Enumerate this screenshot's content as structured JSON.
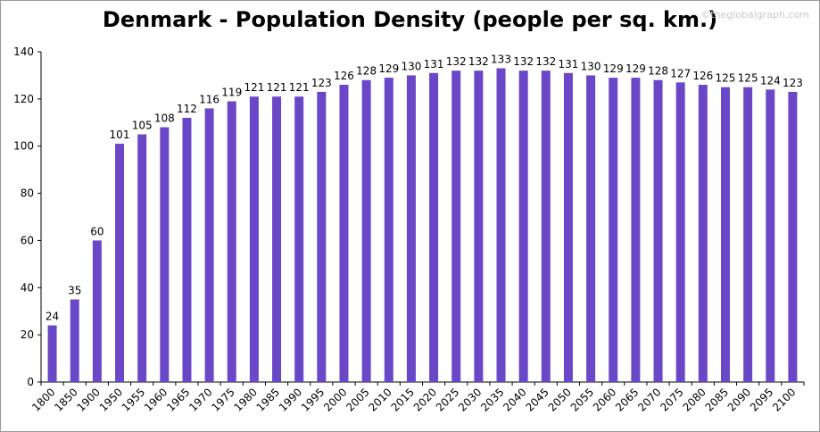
{
  "title": "Denmark - Population Density (people per sq. km.)",
  "watermark": "©theglobalgraph.com",
  "chart_data": {
    "type": "bar",
    "title": "Denmark - Population Density (people per sq. km.)",
    "xlabel": "",
    "ylabel": "",
    "ylim": [
      0,
      140
    ],
    "yticks": [
      0,
      20,
      40,
      60,
      80,
      100,
      120,
      140
    ],
    "grid": false,
    "legend": "none",
    "bar_color": "#6a47c7",
    "categories": [
      "1800",
      "1850",
      "1900",
      "1950",
      "1955",
      "1960",
      "1965",
      "1970",
      "1975",
      "1980",
      "1985",
      "1990",
      "1995",
      "2000",
      "2005",
      "2010",
      "2015",
      "2020",
      "2025",
      "2030",
      "2035",
      "2040",
      "2045",
      "2050",
      "2055",
      "2060",
      "2065",
      "2070",
      "2075",
      "2080",
      "2085",
      "2090",
      "2095",
      "2100"
    ],
    "values": [
      24,
      35,
      60,
      101,
      105,
      108,
      112,
      116,
      119,
      121,
      121,
      121,
      123,
      126,
      128,
      129,
      130,
      131,
      132,
      132,
      133,
      132,
      132,
      131,
      130,
      129,
      129,
      128,
      127,
      126,
      125,
      125,
      124,
      123
    ]
  }
}
